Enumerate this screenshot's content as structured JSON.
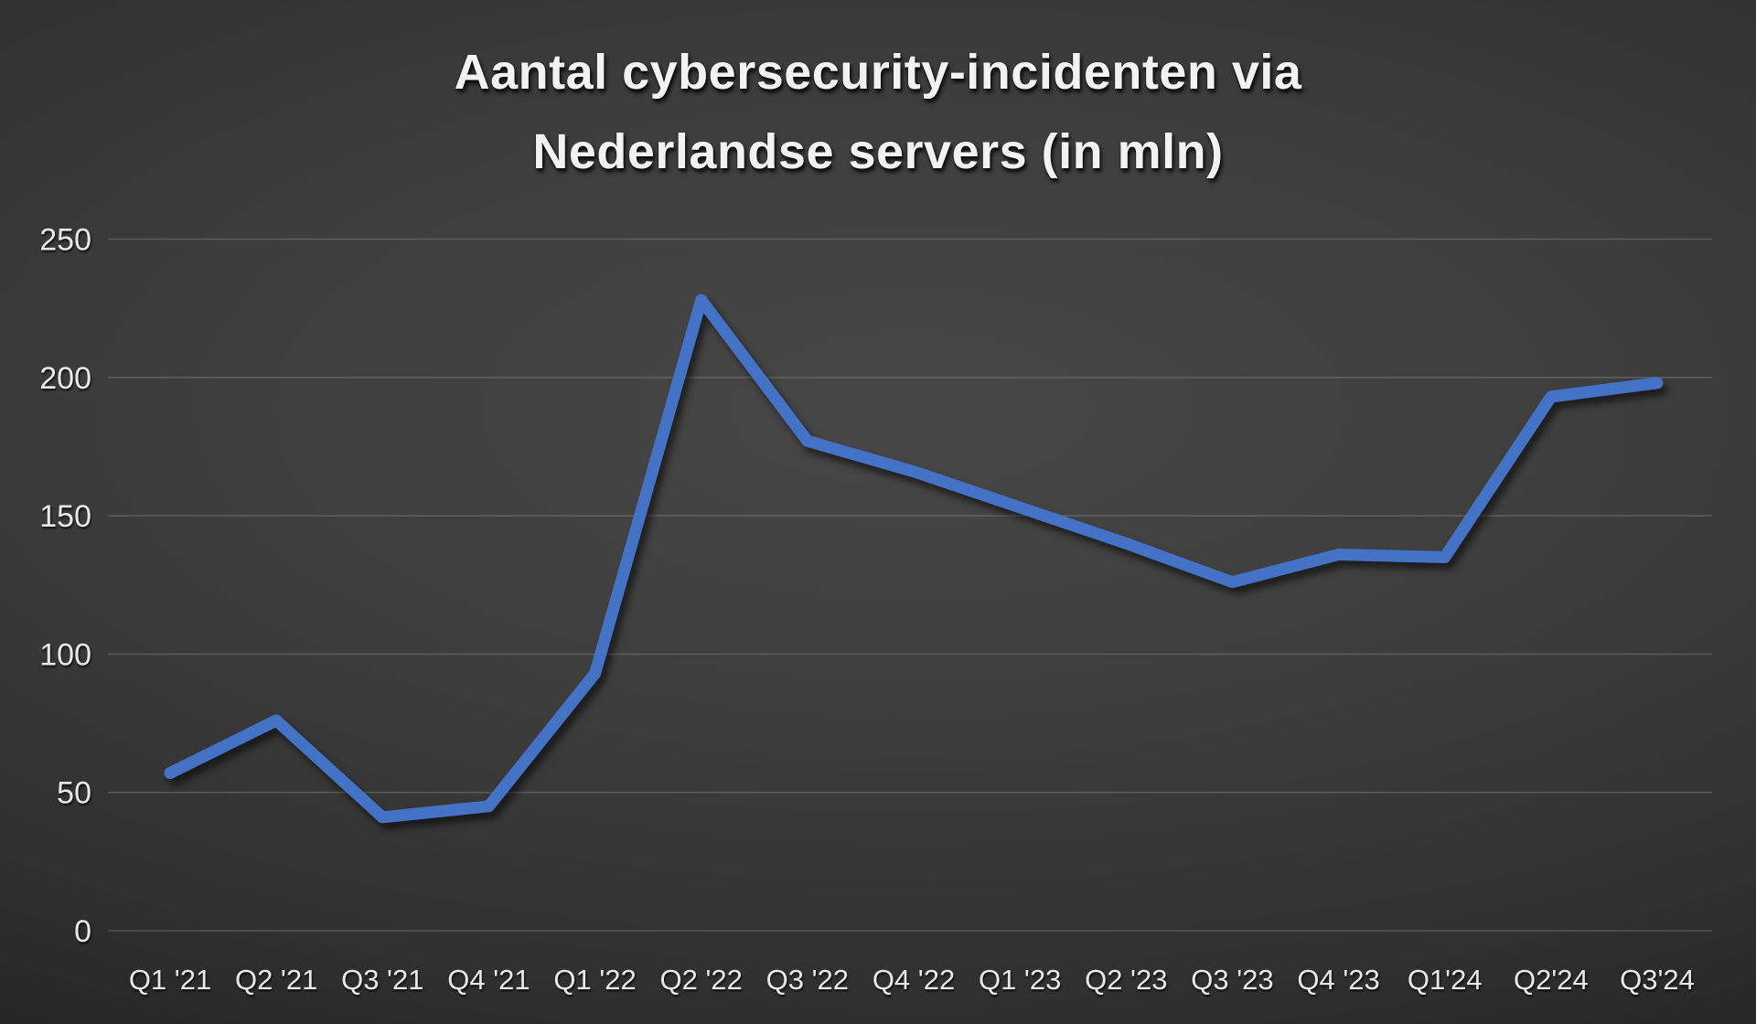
{
  "chart_data": {
    "type": "line",
    "title": "Aantal cybersecurity-incidenten via Nederlandse servers (in mln)",
    "title_lines": [
      "Aantal cybersecurity-incidenten via",
      "Nederlandse servers (in mln)"
    ],
    "categories": [
      "Q1 '21",
      "Q2 '21",
      "Q3 '21",
      "Q4 '21",
      "Q1 '22",
      "Q2 '22",
      "Q3 '22",
      "Q4 '22",
      "Q1 '23",
      "Q2 '23",
      "Q3 '23",
      "Q4 '23",
      "Q1'24",
      "Q2'24",
      "Q3'24"
    ],
    "values": [
      57,
      76,
      41,
      45,
      93,
      228,
      177,
      166,
      153,
      140,
      126,
      136,
      135,
      193,
      198
    ],
    "xlabel": "",
    "ylabel": "",
    "ylim": [
      0,
      250
    ],
    "yticks": [
      0,
      50,
      100,
      150,
      200,
      250
    ],
    "grid": true,
    "legend_position": "none",
    "line_color": "#4472C4",
    "gridline_color": "#8a8a8a",
    "text_color": "#e8e8e8",
    "title_color": "#f2f2f2",
    "background_style": "dark radial gradient"
  }
}
